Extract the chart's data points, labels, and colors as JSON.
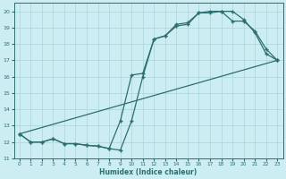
{
  "xlabel": "Humidex (Indice chaleur)",
  "bg_color": "#cceef2",
  "grid_color": "#b0d8dc",
  "line_color": "#2d6e6e",
  "xlim": [
    -0.5,
    23.5
  ],
  "ylim": [
    11,
    20.5
  ],
  "xticks": [
    0,
    1,
    2,
    3,
    4,
    5,
    6,
    7,
    8,
    9,
    10,
    11,
    12,
    13,
    14,
    15,
    16,
    17,
    18,
    19,
    20,
    21,
    22,
    23
  ],
  "yticks": [
    11,
    12,
    13,
    14,
    15,
    16,
    17,
    18,
    19,
    20
  ],
  "line1_x": [
    0,
    1,
    2,
    3,
    4,
    5,
    6,
    7,
    8,
    9,
    10,
    11,
    12,
    13,
    14,
    15,
    16,
    17,
    18,
    19,
    20,
    21,
    22,
    23
  ],
  "line1_y": [
    12.5,
    12.0,
    12.0,
    12.2,
    11.9,
    11.9,
    11.8,
    11.75,
    11.6,
    11.5,
    13.3,
    16.0,
    18.3,
    18.5,
    19.1,
    19.2,
    19.9,
    19.9,
    20.0,
    20.0,
    19.5,
    18.7,
    17.4,
    17.0
  ],
  "line2_x": [
    0,
    1,
    2,
    3,
    4,
    5,
    6,
    7,
    8,
    9,
    10,
    11,
    12,
    13,
    14,
    15,
    16,
    17,
    18,
    19,
    20,
    21,
    22,
    23
  ],
  "line2_y": [
    12.5,
    12.0,
    12.0,
    12.2,
    11.9,
    11.9,
    11.8,
    11.75,
    11.6,
    13.3,
    16.1,
    16.2,
    18.3,
    18.5,
    19.2,
    19.3,
    19.9,
    20.0,
    20.0,
    19.4,
    19.4,
    18.8,
    17.7,
    17.0
  ],
  "line3_x": [
    0,
    23
  ],
  "line3_y": [
    12.5,
    17.0
  ],
  "marker": "+",
  "markersize": 3,
  "linewidth": 0.9
}
